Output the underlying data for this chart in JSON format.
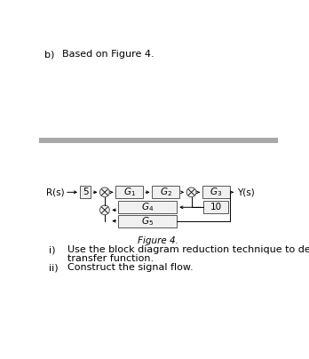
{
  "title_b": "b)",
  "title_text": "Based on Figure 4.",
  "fig_caption": "Figure 4.",
  "item_i": "i)",
  "item_i_text": "Use the block diagram reduction technique to determine the equivalent",
  "item_i_text2": "transfer function.",
  "item_ii": "ii)",
  "item_ii_text": "Construct the signal flow.",
  "bg_color": "#ffffff",
  "bar_color": "#a8a8a8",
  "block_edgecolor": "#555555",
  "block_facecolor": "#f0f0f0",
  "arrow_color": "#000000",
  "text_color": "#000000"
}
